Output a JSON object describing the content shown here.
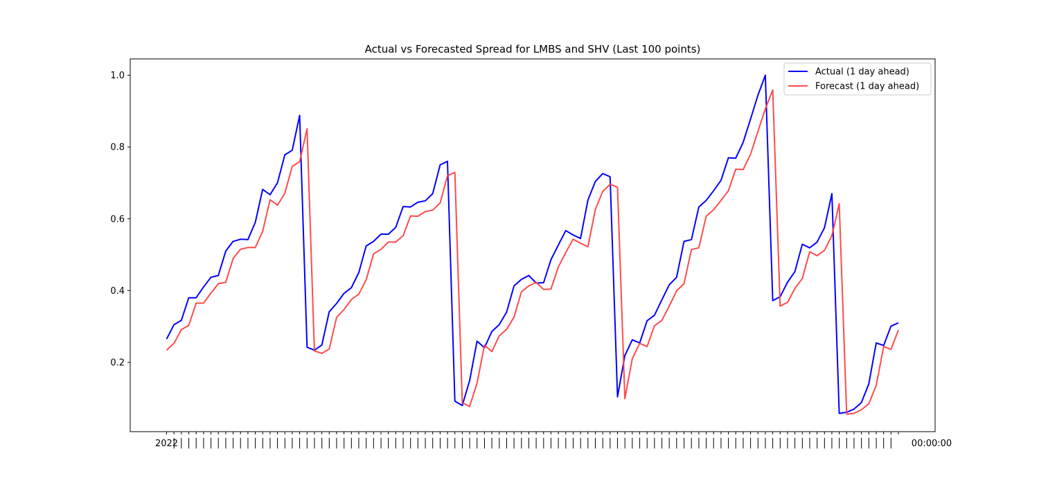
{
  "chart_data": {
    "type": "line",
    "title": "Actual vs Forecasted Spread for LMBS and SHV (Last 100 points)",
    "xlabel": "",
    "ylabel": "",
    "ylim": [
      0.0,
      1.0
    ],
    "yticks": [
      0.2,
      0.4,
      0.6,
      0.8,
      1.0
    ],
    "ytick_labels": [
      "0.2",
      "0.4",
      "0.6",
      "0.8",
      "1.0"
    ],
    "grid": false,
    "legend_position": "top-right",
    "x_tick_labels_note": "dense overlapping date labels (illegible)",
    "x_first_tick_label": "2022",
    "x_last_tick_label": "00:00:00",
    "colors": {
      "actual": "#0000ff",
      "forecast": "#ff4040"
    },
    "series": [
      {
        "name": "Actual (1 day ahead)",
        "values": [
          0.265,
          0.305,
          0.317,
          0.38,
          0.38,
          0.41,
          0.437,
          0.442,
          0.51,
          0.537,
          0.543,
          0.542,
          0.59,
          0.682,
          0.667,
          0.7,
          0.778,
          0.791,
          0.888,
          0.242,
          0.234,
          0.248,
          0.341,
          0.364,
          0.392,
          0.408,
          0.45,
          0.524,
          0.537,
          0.557,
          0.557,
          0.576,
          0.634,
          0.633,
          0.646,
          0.65,
          0.67,
          0.75,
          0.76,
          0.092,
          0.08,
          0.149,
          0.259,
          0.241,
          0.286,
          0.305,
          0.34,
          0.413,
          0.431,
          0.442,
          0.421,
          0.422,
          0.486,
          0.527,
          0.567,
          0.555,
          0.545,
          0.652,
          0.704,
          0.726,
          0.717,
          0.104,
          0.219,
          0.263,
          0.254,
          0.316,
          0.331,
          0.374,
          0.416,
          0.437,
          0.537,
          0.542,
          0.633,
          0.651,
          0.678,
          0.707,
          0.77,
          0.769,
          0.813,
          0.878,
          0.944,
          1.0,
          0.372,
          0.383,
          0.423,
          0.453,
          0.529,
          0.519,
          0.535,
          0.575,
          0.67,
          0.058,
          0.061,
          0.07,
          0.088,
          0.14,
          0.254,
          0.247,
          0.301,
          0.31
        ]
      },
      {
        "name": "Forecast (1 day ahead)",
        "values": [
          0.234,
          0.253,
          0.291,
          0.303,
          0.365,
          0.365,
          0.393,
          0.419,
          0.423,
          0.489,
          0.515,
          0.52,
          0.52,
          0.565,
          0.653,
          0.638,
          0.671,
          0.746,
          0.759,
          0.851,
          0.232,
          0.225,
          0.237,
          0.325,
          0.347,
          0.375,
          0.39,
          0.43,
          0.502,
          0.515,
          0.535,
          0.535,
          0.553,
          0.608,
          0.607,
          0.62,
          0.624,
          0.644,
          0.72,
          0.729,
          0.088,
          0.077,
          0.142,
          0.248,
          0.23,
          0.274,
          0.292,
          0.326,
          0.396,
          0.413,
          0.423,
          0.403,
          0.404,
          0.466,
          0.506,
          0.543,
          0.532,
          0.522,
          0.626,
          0.676,
          0.696,
          0.688,
          0.099,
          0.21,
          0.253,
          0.244,
          0.302,
          0.317,
          0.357,
          0.399,
          0.419,
          0.514,
          0.519,
          0.607,
          0.625,
          0.651,
          0.678,
          0.738,
          0.737,
          0.78,
          0.843,
          0.906,
          0.959,
          0.357,
          0.367,
          0.406,
          0.434,
          0.508,
          0.497,
          0.512,
          0.553,
          0.642,
          0.056,
          0.058,
          0.068,
          0.085,
          0.136,
          0.244,
          0.236,
          0.29
        ]
      }
    ]
  }
}
